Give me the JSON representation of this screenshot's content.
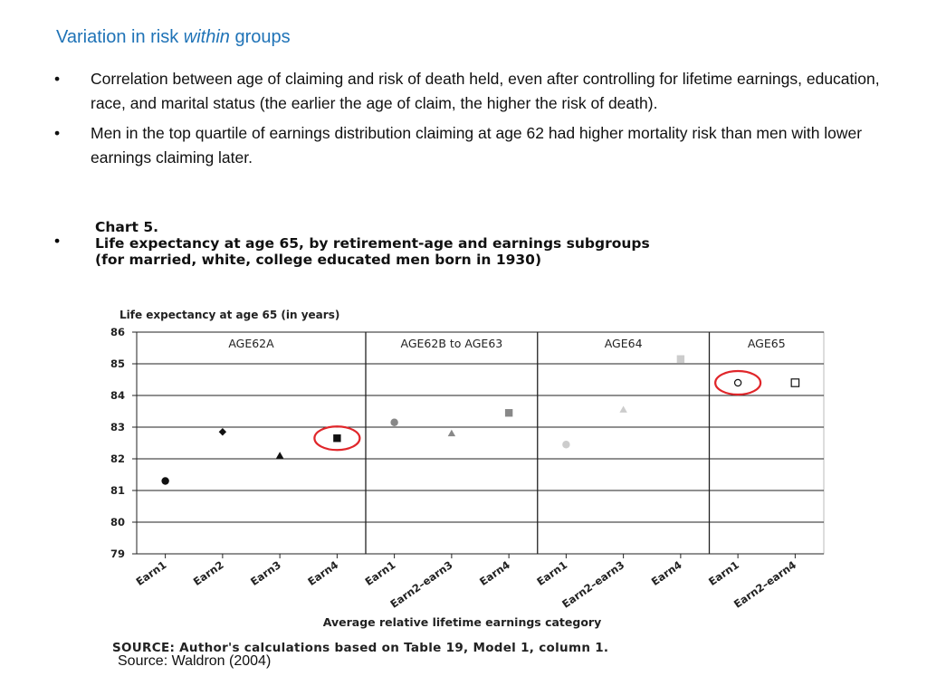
{
  "slide": {
    "title_prefix": "Variation in risk ",
    "title_emphasis": "within",
    "title_suffix": " groups",
    "bullet_glyph": "•",
    "bullets": [
      "Correlation between age of claiming and risk of death held, even after controlling for lifetime earnings, education, race, and marital status (the earlier the age of claim, the higher the risk of death).",
      "Men in the top quartile of earnings distribution claiming at age 62 had higher mortality risk than men with lower earnings claiming later."
    ],
    "source_caption": "Source: Waldron (2004)"
  },
  "chart_data": {
    "type": "scatter",
    "chart_label": "Chart 5.",
    "title": "Life expectancy at age 65, by retirement-age and earnings subgroups",
    "subtitle": "(for married, white, college educated men born in 1930)",
    "ylabel": "Life expectancy at age 65 (in years)",
    "xlabel": "Average relative lifetime earnings category",
    "ylim": [
      79,
      86
    ],
    "yticks": [
      79,
      80,
      81,
      82,
      83,
      84,
      85,
      86
    ],
    "grid": true,
    "source": "SOURCE:  Author's calculations based on Table 19, Model 1, column 1.",
    "categories": [
      "Earn1",
      "Earn2",
      "Earn3",
      "Earn4",
      "Earn1",
      "Earn2–earn3",
      "Earn4",
      "Earn1",
      "Earn2–earn3",
      "Earn4",
      "Earn1",
      "Earn2–earn4"
    ],
    "groups": [
      {
        "label": "AGE62A",
        "span": [
          0,
          3
        ]
      },
      {
        "label": "AGE62B to AGE63",
        "span": [
          4,
          6
        ]
      },
      {
        "label": "AGE64",
        "span": [
          7,
          9
        ]
      },
      {
        "label": "AGE65",
        "span": [
          10,
          11
        ]
      }
    ],
    "points": [
      {
        "group": "AGE62A",
        "category": "Earn1",
        "value": 81.3,
        "marker": "circle",
        "color": "#111111"
      },
      {
        "group": "AGE62A",
        "category": "Earn2",
        "value": 82.85,
        "marker": "diamond",
        "color": "#111111"
      },
      {
        "group": "AGE62A",
        "category": "Earn3",
        "value": 82.1,
        "marker": "triangle",
        "color": "#111111"
      },
      {
        "group": "AGE62A",
        "category": "Earn4",
        "value": 82.65,
        "marker": "square",
        "color": "#111111",
        "highlighted": true
      },
      {
        "group": "AGE62B to AGE63",
        "category": "Earn1",
        "value": 83.15,
        "marker": "circle",
        "color": "#888888"
      },
      {
        "group": "AGE62B to AGE63",
        "category": "Earn2–earn3",
        "value": 82.8,
        "marker": "triangle",
        "color": "#888888"
      },
      {
        "group": "AGE62B to AGE63",
        "category": "Earn4",
        "value": 83.45,
        "marker": "square",
        "color": "#888888"
      },
      {
        "group": "AGE64",
        "category": "Earn1",
        "value": 82.45,
        "marker": "circle",
        "color": "#cccccc"
      },
      {
        "group": "AGE64",
        "category": "Earn2–earn3",
        "value": 83.55,
        "marker": "triangle",
        "color": "#cccccc"
      },
      {
        "group": "AGE64",
        "category": "Earn4",
        "value": 85.15,
        "marker": "square",
        "color": "#cccccc"
      },
      {
        "group": "AGE65",
        "category": "Earn1",
        "value": 84.4,
        "marker": "circle-open",
        "color": "#111111",
        "highlighted": true
      },
      {
        "group": "AGE65",
        "category": "Earn2–earn4",
        "value": 84.4,
        "marker": "square-open",
        "color": "#111111"
      }
    ],
    "highlight_color": "#e0262a"
  }
}
